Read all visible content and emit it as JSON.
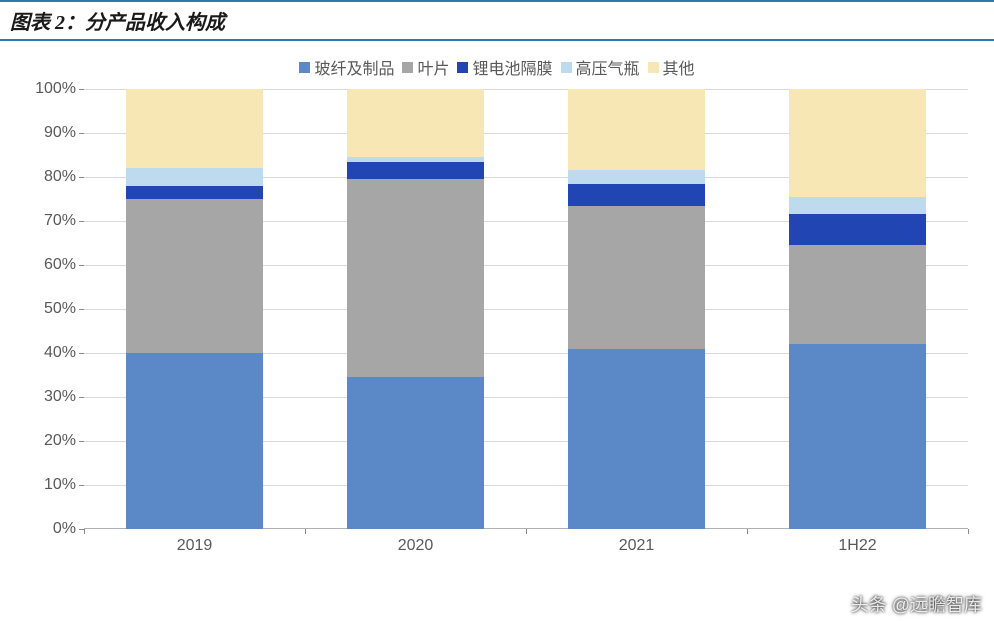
{
  "header": {
    "title": "图表 2：分产品收入构成"
  },
  "chart": {
    "type": "stacked-bar-100pct",
    "background_color": "#ffffff",
    "grid_color": "#d9d9d9",
    "axis_color": "#b0b0b0",
    "label_color": "#595959",
    "label_fontsize": 16,
    "title_fontsize": 20,
    "ylim": [
      0,
      100
    ],
    "ytick_step": 10,
    "ytick_suffix": "%",
    "bar_width_ratio": 0.62,
    "categories": [
      "2019",
      "2020",
      "2021",
      "1H22"
    ],
    "series": [
      {
        "name": "玻纤及制品",
        "color": "#5b89c7",
        "values": [
          40,
          34.5,
          41,
          42
        ]
      },
      {
        "name": "叶片",
        "color": "#a6a6a6",
        "values": [
          35,
          45,
          32.5,
          22.5
        ]
      },
      {
        "name": "锂电池隔膜",
        "color": "#2146b4",
        "values": [
          3,
          4,
          5,
          7
        ]
      },
      {
        "name": "高压气瓶",
        "color": "#bddaef",
        "values": [
          4,
          1,
          3,
          4
        ]
      },
      {
        "name": "其他",
        "color": "#f6e7b4",
        "values": [
          18,
          15.5,
          18.5,
          24.5
        ]
      }
    ]
  },
  "watermark": {
    "text": "头条 @远瞻智库"
  }
}
